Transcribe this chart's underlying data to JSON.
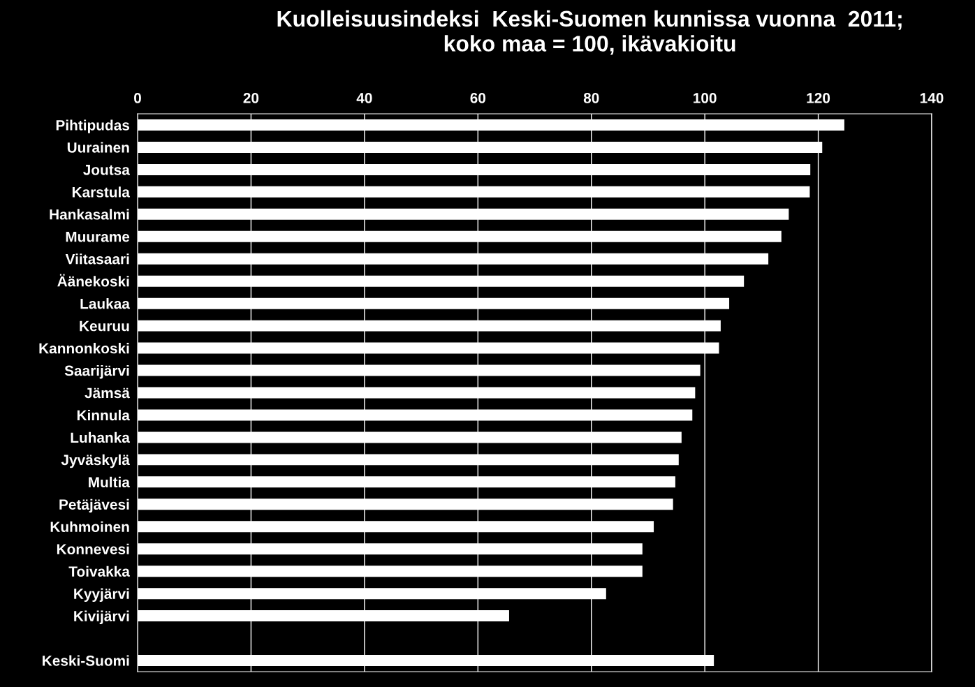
{
  "chart_data": {
    "type": "bar",
    "orientation": "horizontal",
    "title": "Kuolleisuusindeksi  Keski-Suomen kunnissa vuonna  2011;\nkoko maa = 100, ikävakioitu",
    "categories": [
      "Pihtipudas",
      "Uurainen",
      "Joutsa",
      "Karstula",
      "Hankasalmi",
      "Muurame",
      "Viitasaari",
      "Äänekoski",
      "Laukaa",
      "Keuruu",
      "Kannonkoski",
      "Saarijärvi",
      "Jämsä",
      "Kinnula",
      "Luhanka",
      "Jyväskylä",
      "Multia",
      "Petäjävesi",
      "Kuhmoinen",
      "Konnevesi",
      "Toivakka",
      "Kyyjärvi",
      "Kivijärvi",
      null,
      "Keski-Suomi"
    ],
    "values": [
      124.6,
      120.7,
      118.6,
      118.5,
      114.8,
      113.5,
      111.2,
      106.9,
      104.3,
      102.8,
      102.5,
      99.2,
      98.3,
      97.8,
      95.9,
      95.4,
      94.8,
      94.4,
      91.0,
      89.0,
      89.0,
      82.6,
      65.5,
      null,
      101.6
    ],
    "color": "#ffffff",
    "xlim": [
      0,
      140
    ],
    "xticks": [
      0,
      20,
      40,
      60,
      80,
      100,
      120,
      140
    ],
    "grid": "x",
    "legend": false
  }
}
